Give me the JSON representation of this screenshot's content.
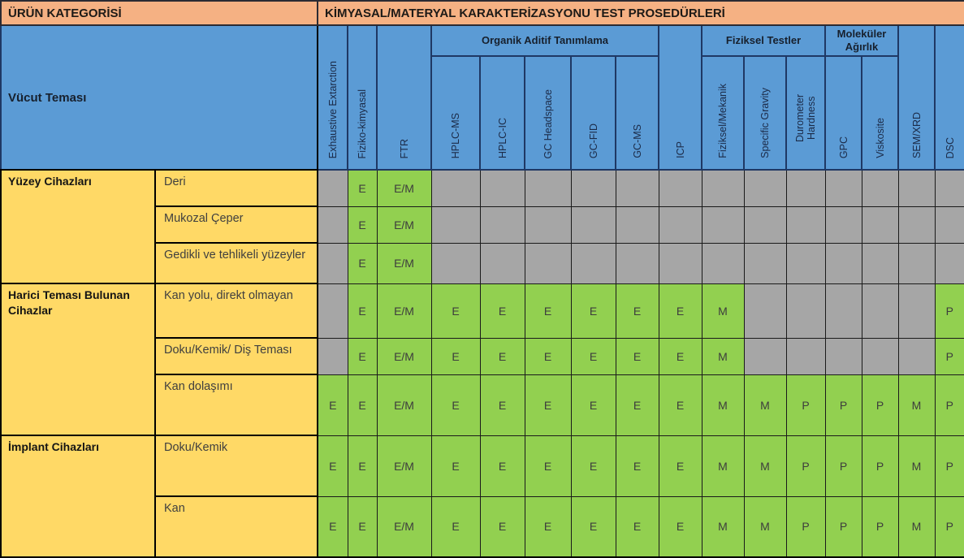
{
  "header": {
    "left_title": "ÜRÜN KATEGORİSİ",
    "right_title": "KİMYASAL/MATERYAL KARAKTERİZASYONU TEST PROSEDÜRLERİ",
    "body_contact_label": "Vücut Teması"
  },
  "column_groups": [
    {
      "label": "Organik Aditif Tanımlama",
      "span": 5
    },
    {
      "label": "Fiziksel Testler",
      "span": 3
    },
    {
      "label": "Moleküler Ağırlık",
      "span": 2
    }
  ],
  "test_columns": [
    {
      "label": "Exhaustive Extarction",
      "group": ""
    },
    {
      "label": "Fiziko-kimyasal",
      "group": ""
    },
    {
      "label": "FTR",
      "group": ""
    },
    {
      "label": "HPLC-MS",
      "group": "Organik Aditif Tanımlama"
    },
    {
      "label": "HPLC-IC",
      "group": "Organik Aditif Tanımlama"
    },
    {
      "label": "GC Headspace",
      "group": "Organik Aditif Tanımlama"
    },
    {
      "label": "GC-FID",
      "group": "Organik Aditif Tanımlama"
    },
    {
      "label": "GC-MS",
      "group": "Organik Aditif Tanımlama"
    },
    {
      "label": "ICP",
      "group": ""
    },
    {
      "label": "Fiziksel/Mekanik",
      "group": "Fiziksel Testler"
    },
    {
      "label": "Specific Gravity",
      "group": "Fiziksel Testler"
    },
    {
      "label": "Durometer Hardness",
      "group": "Fiziksel Testler"
    },
    {
      "label": "GPC",
      "group": "Moleküler Ağırlık"
    },
    {
      "label": "Viskosite",
      "group": "Moleküler Ağırlık"
    },
    {
      "label": "SEM/XRD",
      "group": ""
    },
    {
      "label": "DSC",
      "group": ""
    }
  ],
  "rows": [
    {
      "category": "Yüzey Cihazları",
      "category_rowspan": 3,
      "label": "Deri",
      "values": [
        "",
        "E",
        "E/M",
        "",
        "",
        "",
        "",
        "",
        "",
        "",
        "",
        "",
        "",
        "",
        "",
        ""
      ]
    },
    {
      "label": "Mukozal Çeper",
      "values": [
        "",
        "E",
        "E/M",
        "",
        "",
        "",
        "",
        "",
        "",
        "",
        "",
        "",
        "",
        "",
        "",
        ""
      ]
    },
    {
      "label": "Gedikli ve tehlikeli yüzeyler",
      "values": [
        "",
        "E",
        "E/M",
        "",
        "",
        "",
        "",
        "",
        "",
        "",
        "",
        "",
        "",
        "",
        "",
        ""
      ]
    },
    {
      "category": "Harici Teması Bulunan Cihazlar",
      "category_rowspan": 3,
      "label": "Kan yolu, direkt olmayan",
      "values": [
        "",
        "E",
        "E/M",
        "E",
        "E",
        "E",
        "E",
        "E",
        "E",
        "M",
        "",
        "",
        "",
        "",
        "",
        "P"
      ]
    },
    {
      "label": "Doku/Kemik/ Diş Teması",
      "values": [
        "",
        "E",
        "E/M",
        "E",
        "E",
        "E",
        "E",
        "E",
        "E",
        "M",
        "",
        "",
        "",
        "",
        "",
        "P"
      ]
    },
    {
      "label": "Kan dolaşımı",
      "values": [
        "E",
        "E",
        "E/M",
        "E",
        "E",
        "E",
        "E",
        "E",
        "E",
        "M",
        "M",
        "P",
        "P",
        "P",
        "M",
        "P"
      ]
    },
    {
      "category": "İmplant Cihazları",
      "category_rowspan": 2,
      "label": "Doku/Kemik",
      "values": [
        "E",
        "E",
        "E/M",
        "E",
        "E",
        "E",
        "E",
        "E",
        "E",
        "M",
        "M",
        "P",
        "P",
        "P",
        "M",
        "P"
      ]
    },
    {
      "label": "Kan",
      "values": [
        "E",
        "E",
        "E/M",
        "E",
        "E",
        "E",
        "E",
        "E",
        "E",
        "M",
        "M",
        "P",
        "P",
        "P",
        "M",
        "P"
      ]
    }
  ],
  "colors": {
    "orange": "#F5B183",
    "blue": "#5B9BD5",
    "yellow": "#FFD966",
    "green": "#92D050",
    "gray": "#A6A6A6",
    "navy_border": "#1F3864"
  }
}
